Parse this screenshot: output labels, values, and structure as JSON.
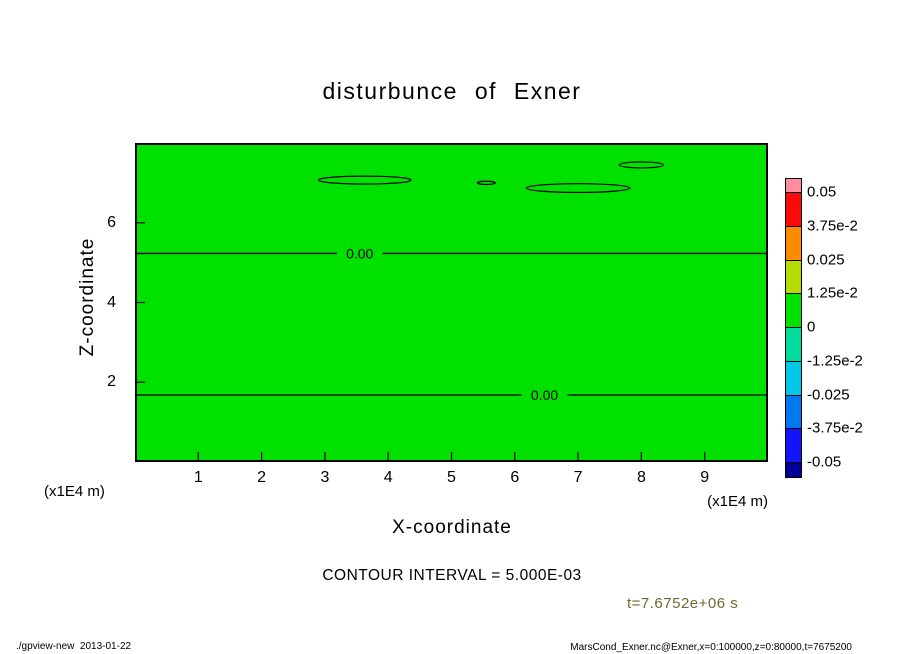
{
  "title": "disturbunce of Exner",
  "axes": {
    "x": {
      "label": "X-coordinate",
      "unit": "(x1E4 m)",
      "ticks": [
        "1",
        "2",
        "3",
        "4",
        "5",
        "6",
        "7",
        "8",
        "9"
      ],
      "range": [
        0,
        10
      ]
    },
    "z": {
      "label": "Z-coordinate",
      "unit": "(x1E4 m)",
      "ticks": [
        "2",
        "4",
        "6"
      ],
      "range": [
        0,
        8
      ]
    }
  },
  "contour_interval_text": "CONTOUR INTERVAL = 5.000E-03",
  "time_label": "t=7.6752e+06 s",
  "footer": {
    "left": "./gpview-new  2013-01-22",
    "right": "MarsCond_Exner.nc@Exner,x=0:100000,z=0:80000,t=7675200"
  },
  "colors": {
    "plot_fill": "#00e100",
    "contour_line": "#000000",
    "time_label": "#6b6b32"
  },
  "colorbar": {
    "labels": [
      "0.05",
      "3.75e-2",
      "0.025",
      "1.25e-2",
      "0",
      "-1.25e-2",
      "-0.025",
      "-3.75e-2",
      "-0.05"
    ],
    "colors": [
      "#ff8ca0",
      "#fa0a0a",
      "#ff8c00",
      "#b4dc00",
      "#00e100",
      "#00dc9b",
      "#00c8e6",
      "#0078f0",
      "#1414fa",
      "#000096"
    ]
  },
  "chart_data": {
    "type": "heatmap",
    "title": "disturbunce of Exner",
    "xlabel": "X-coordinate (x1E4 m)",
    "ylabel": "Z-coordinate (x1E4 m)",
    "xlim": [
      0,
      10
    ],
    "ylim": [
      0,
      8
    ],
    "contour_interval": 0.005,
    "levels": [
      -0.05,
      -0.0375,
      -0.025,
      -0.0125,
      0,
      0.0125,
      0.025,
      0.0375,
      0.05
    ],
    "field_description": "Exner function disturbance is approximately 0 over the whole domain; the fill is the uniform green 0-band with 0.00 contour lines",
    "zero_contour_lines": [
      {
        "z": 5.23,
        "label": "0.00",
        "label_x": 3.55
      },
      {
        "z": 1.68,
        "label": "0.00",
        "label_x": 6.47
      }
    ],
    "closed_zero_contours": [
      {
        "cx": 3.63,
        "cz": 7.07,
        "rx": 0.73,
        "rz": 0.1
      },
      {
        "cx": 5.55,
        "cz": 7.0,
        "rx": 0.14,
        "rz": 0.04
      },
      {
        "cx": 7.0,
        "cz": 6.87,
        "rx": 0.82,
        "rz": 0.11
      },
      {
        "cx": 8.0,
        "cz": 7.45,
        "rx": 0.35,
        "rz": 0.075
      }
    ],
    "legend_position": "right colorbar",
    "grid": false
  }
}
